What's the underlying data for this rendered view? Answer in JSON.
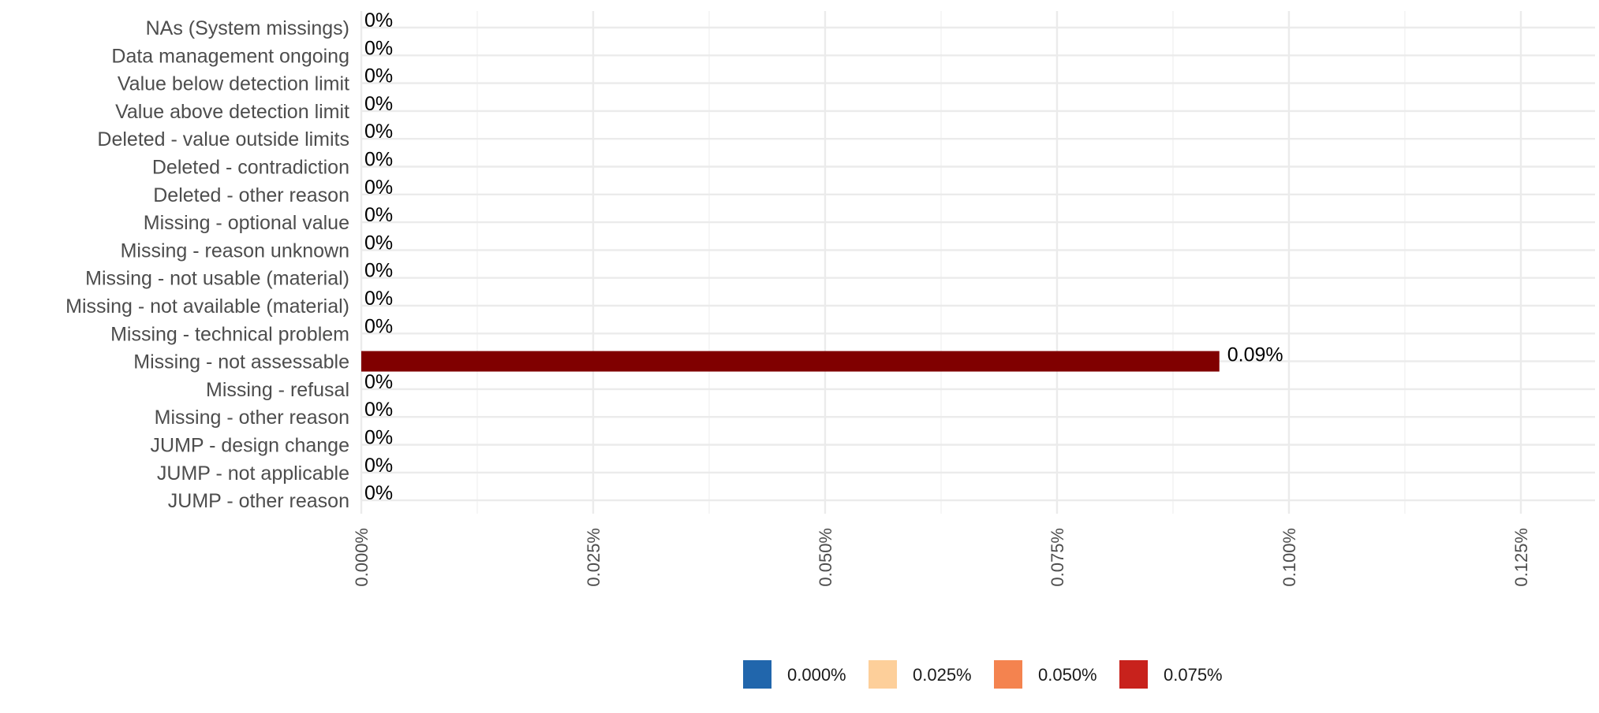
{
  "chart_data": {
    "type": "bar",
    "orientation": "horizontal",
    "categories": [
      "NAs (System missings)",
      "Data management ongoing",
      "Value below detection limit",
      "Value above detection limit",
      "Deleted - value outside limits",
      "Deleted - contradiction",
      "Deleted - other reason",
      "Missing - optional value",
      "Missing - reason unknown",
      "Missing - not usable (material)",
      "Missing - not available (material)",
      "Missing - technical problem",
      "Missing - not assessable",
      "Missing - refusal",
      "Missing - other reason",
      "JUMP - design change",
      "JUMP - not applicable",
      "JUMP - other reason"
    ],
    "values": [
      0,
      0,
      0,
      0,
      0,
      0,
      0,
      0,
      0,
      0,
      0,
      0,
      0.0925,
      0,
      0,
      0,
      0,
      0
    ],
    "value_labels": [
      "0%",
      "0%",
      "0%",
      "0%",
      "0%",
      "0%",
      "0%",
      "0%",
      "0%",
      "0%",
      "0%",
      "0%",
      "0.09%",
      "0%",
      "0%",
      "0%",
      "0%",
      "0%"
    ],
    "title": "",
    "xlabel": "",
    "ylabel": "",
    "xlim": [
      0,
      0.133
    ],
    "x_ticks": [
      0,
      0.025,
      0.05,
      0.075,
      0.1,
      0.125
    ],
    "x_tick_labels": [
      "0.000%",
      "0.025%",
      "0.050%",
      "0.075%",
      "0.100%",
      "0.125%"
    ],
    "bar_color": "#800000",
    "grid": true,
    "legend": {
      "position": "bottom",
      "items": [
        {
          "label": "0.000%",
          "color": "#2166ac"
        },
        {
          "label": "0.025%",
          "color": "#fdcf9a"
        },
        {
          "label": "0.050%",
          "color": "#f4834f"
        },
        {
          "label": "0.075%",
          "color": "#c8221c"
        }
      ]
    }
  }
}
